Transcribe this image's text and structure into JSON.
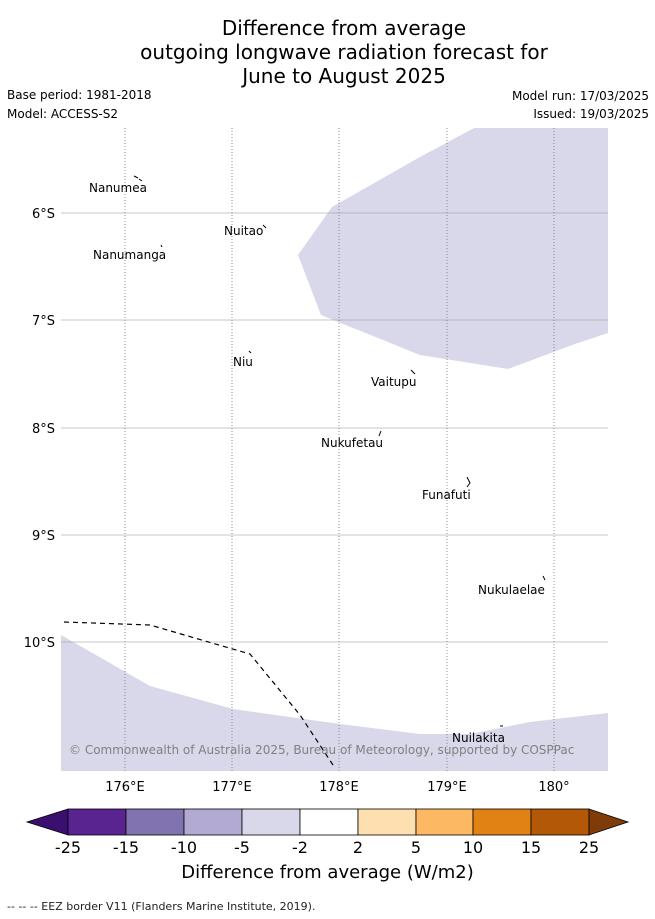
{
  "title": {
    "line1": "Difference from average",
    "line2": "outgoing longwave radiation forecast for",
    "line3": "June to August 2025"
  },
  "meta": {
    "base_period": "Base period: 1981-2018",
    "model": "Model: ACCESS-S2",
    "model_run": "Model run: 17/03/2025",
    "issued": "Issued: 19/03/2025"
  },
  "map": {
    "lon_labels": [
      "176°E",
      "177°E",
      "178°E",
      "179°E",
      "180°"
    ],
    "lat_labels": [
      "6°S",
      "7°S",
      "8°S",
      "9°S",
      "10°S"
    ],
    "places": [
      "Nanumea",
      "Nuitao",
      "Nanumanga",
      "Niu",
      "Vaitupu",
      "Nukufetau",
      "Funafuti",
      "Nukulaelae",
      "Nuilakita"
    ],
    "copyright": "© Commonwealth of Australia 2025, Bureau of Meteorology, supported by COSPPac",
    "anomaly_fill_color": "#d8d8ea"
  },
  "colorbar": {
    "ticks": [
      "-25",
      "-15",
      "-10",
      "-5",
      "-2",
      "2",
      "5",
      "10",
      "15",
      "25"
    ],
    "colors": [
      "#3b0f6f",
      "#5a2490",
      "#8173b0",
      "#b3aad3",
      "#d8d8ea",
      "#ffffff",
      "#fedfb0",
      "#fdb863",
      "#e08214",
      "#b35806",
      "#7f3b08"
    ],
    "label": "Difference from average (W/m2)"
  },
  "footnote": "-- -- -- EEZ border V11 (Flanders Marine Institute, 2019)."
}
